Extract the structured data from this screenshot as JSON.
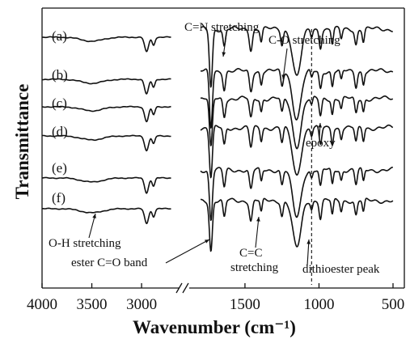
{
  "chart_data": {
    "type": "line",
    "xlabel": "Wavenumber (cm⁻¹)",
    "ylabel": "Transmittance",
    "x_reversed": true,
    "axis_break": true,
    "xlim_left_segment": [
      4000,
      2700
    ],
    "xlim_right_segment": [
      1800,
      500
    ],
    "x_ticks": [
      4000,
      3500,
      3000,
      1500,
      1000,
      500
    ],
    "x_tick_labels": [
      "4000",
      "3500",
      "3000",
      "1500",
      "1000",
      "500"
    ],
    "series": [
      {
        "label": "(a)"
      },
      {
        "label": "(b)"
      },
      {
        "label": "(c)"
      },
      {
        "label": "(d)"
      },
      {
        "label": "(e)"
      },
      {
        "label": "(f)"
      }
    ],
    "peaks_cm1": [
      {
        "x": 3500,
        "depth": 0.15,
        "width": 150
      },
      {
        "x": 2950,
        "depth": 0.55,
        "width": 28
      },
      {
        "x": 2880,
        "depth": 0.3,
        "width": 20
      },
      {
        "x": 1730,
        "depth": 1.0,
        "width": 14
      },
      {
        "x": 1640,
        "depth": 0.35,
        "width": 12
      },
      {
        "x": 1460,
        "depth": 0.4,
        "width": 14
      },
      {
        "x": 1390,
        "depth": 0.25,
        "width": 10
      },
      {
        "x": 1250,
        "depth": 0.3,
        "width": 12
      },
      {
        "x": 1150,
        "depth": 0.95,
        "width": 40
      },
      {
        "x": 1050,
        "depth": 0.15,
        "width": 10
      },
      {
        "x": 990,
        "depth": 0.35,
        "width": 12
      },
      {
        "x": 910,
        "depth": 0.3,
        "width": 10
      },
      {
        "x": 850,
        "depth": 0.2,
        "width": 10
      },
      {
        "x": 750,
        "depth": 0.3,
        "width": 12
      },
      {
        "x": 700,
        "depth": 0.25,
        "width": 10
      }
    ],
    "annotations": [
      {
        "text": "C=N stretching"
      },
      {
        "text": "C-O stretching"
      },
      {
        "text": "epoxy"
      },
      {
        "text": "O-H stretching"
      },
      {
        "text": "ester C=O band"
      },
      {
        "text": "C=C"
      },
      {
        "text": "stretching"
      },
      {
        "text": "dithioester peak"
      }
    ],
    "grid": false,
    "legend": "none"
  }
}
